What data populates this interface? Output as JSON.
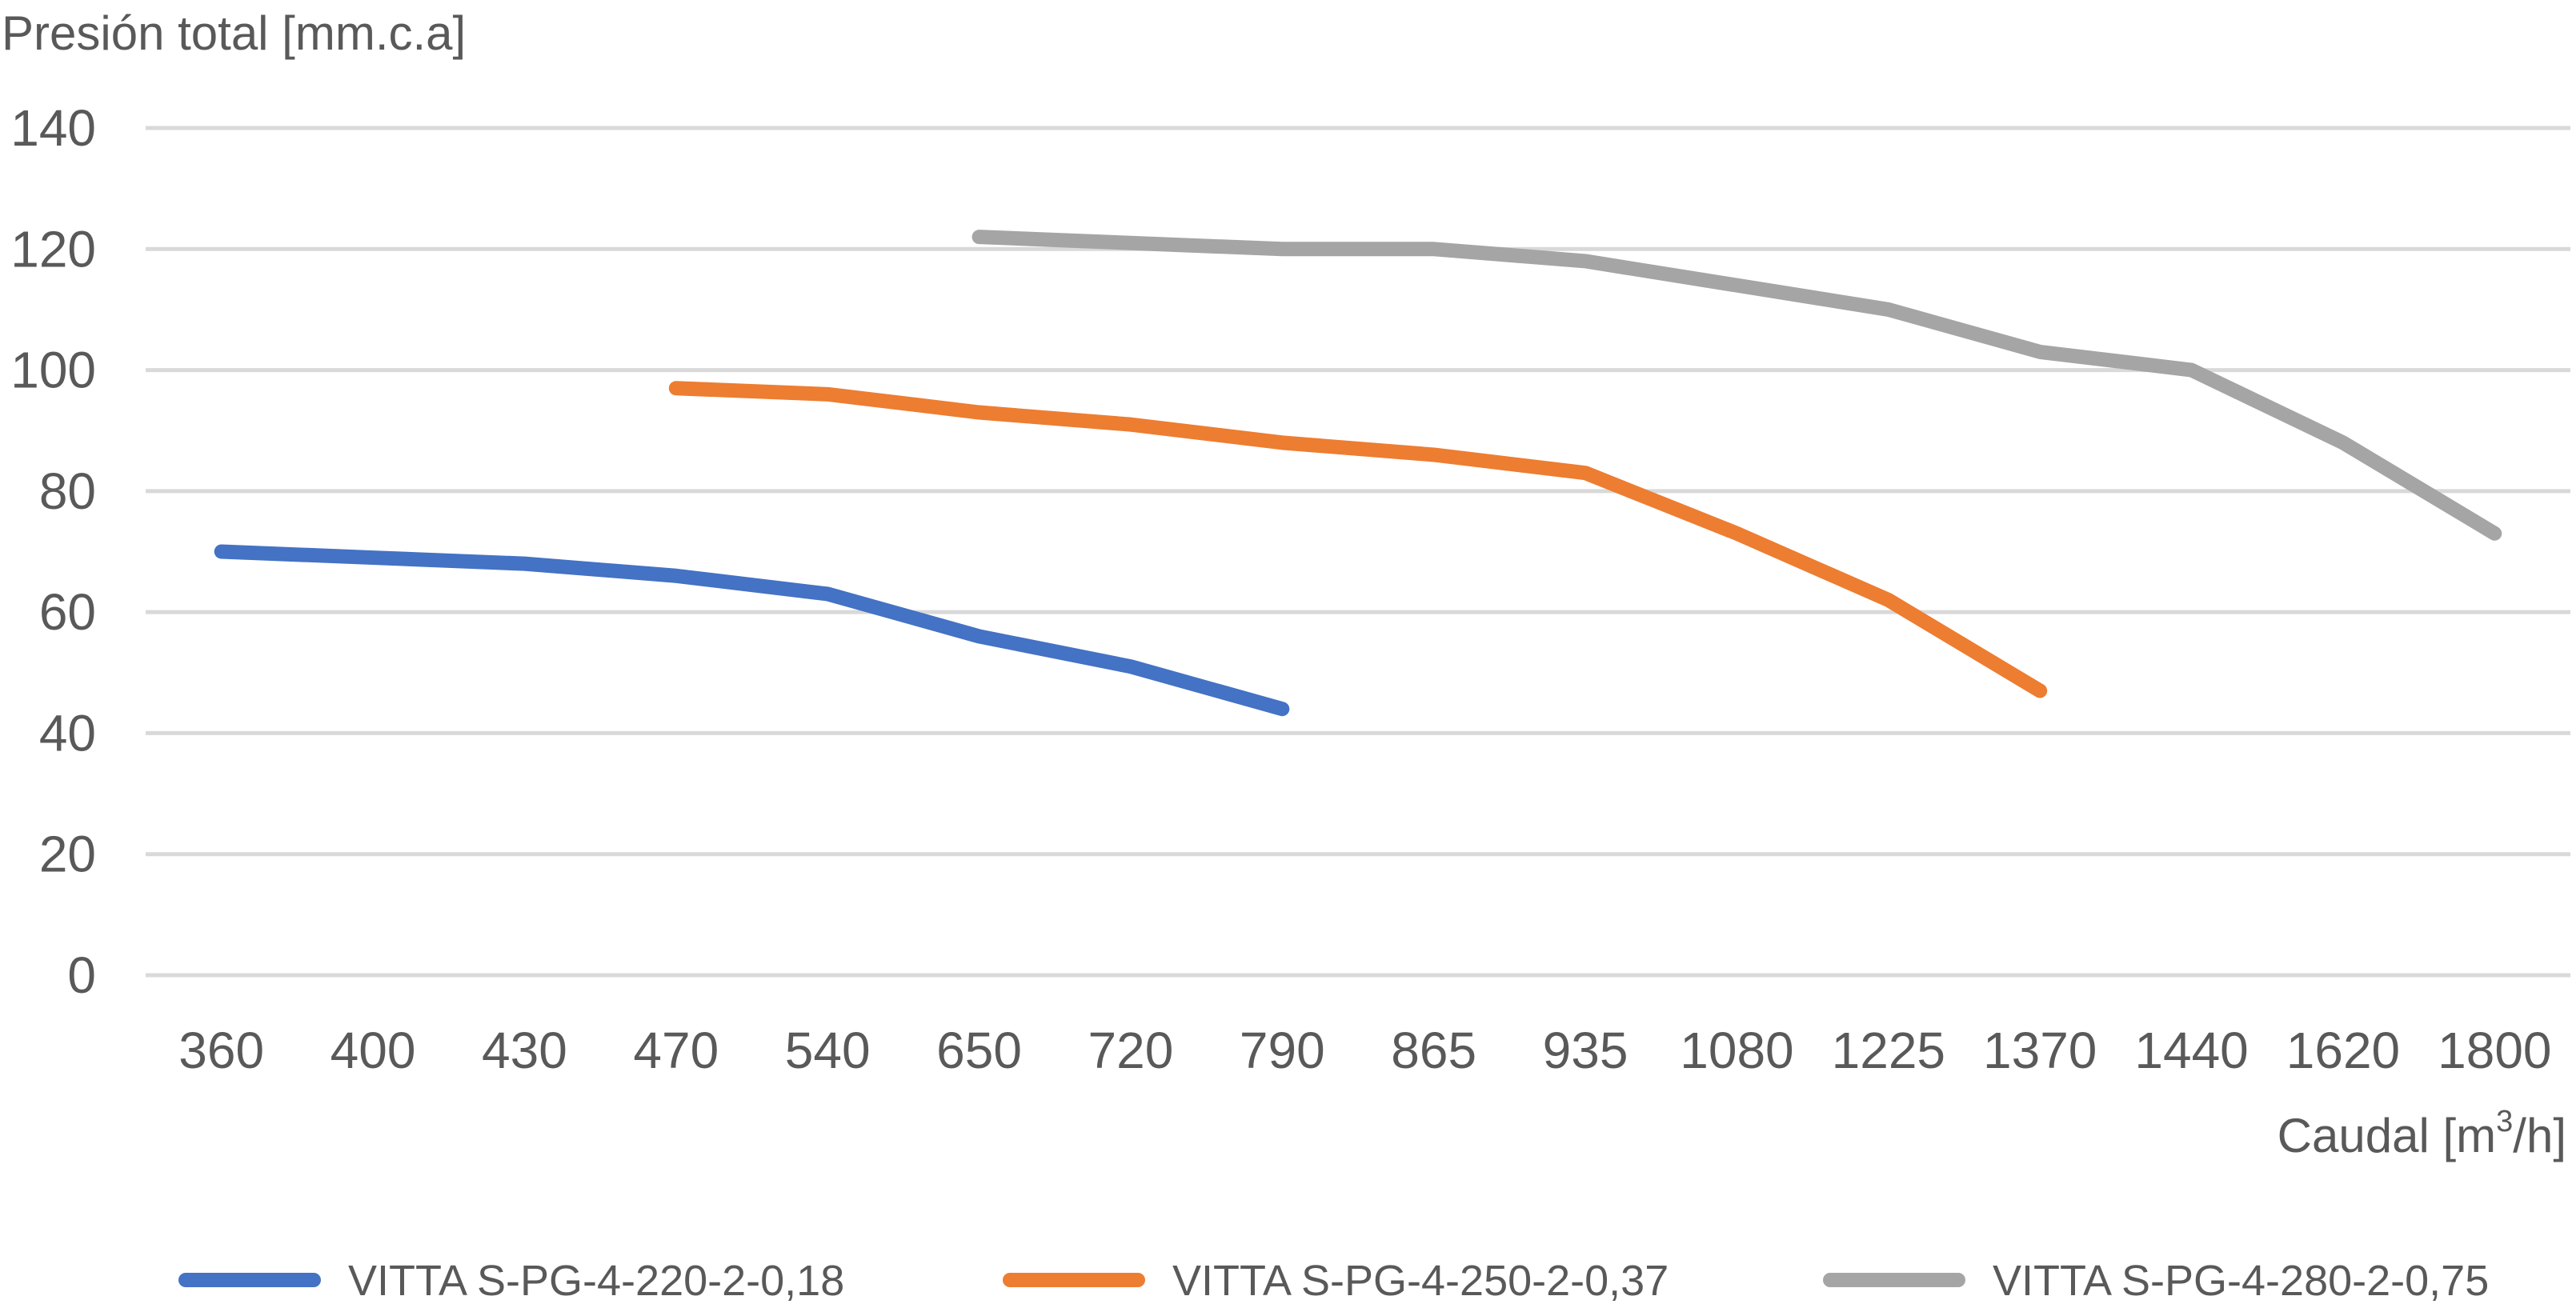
{
  "chart_data": {
    "type": "line",
    "title": "",
    "ylabel": "Presión total [mm.c.a]",
    "xlabel": "Caudal [m3/h]",
    "xlabel_parts": {
      "main": "Caudal [m",
      "sup": "3",
      "tail": "/h]"
    },
    "categories": [
      "360",
      "400",
      "430",
      "470",
      "540",
      "650",
      "720",
      "790",
      "865",
      "935",
      "1080",
      "1225",
      "1370",
      "1440",
      "1620",
      "1800"
    ],
    "ylim": [
      0,
      140
    ],
    "yticks": [
      0,
      20,
      40,
      60,
      80,
      100,
      120,
      140
    ],
    "grid": true,
    "legend_position": "bottom",
    "series": [
      {
        "name": "VITTA S-PG-4-220-2-0,18",
        "color": "#4472C4",
        "values": [
          70,
          69,
          68,
          66,
          63,
          56,
          51,
          44,
          null,
          null,
          null,
          null,
          null,
          null,
          null,
          null
        ]
      },
      {
        "name": "VITTA S-PG-4-250-2-0,37",
        "color": "#ED7D31",
        "values": [
          null,
          null,
          null,
          97,
          96,
          93,
          91,
          88,
          86,
          83,
          73,
          62,
          47,
          null,
          null,
          null
        ]
      },
      {
        "name": "VITTA S-PG-4-280-2-0,75",
        "color": "#A5A5A5",
        "values": [
          null,
          null,
          null,
          null,
          null,
          122,
          121,
          120,
          120,
          118,
          114,
          110,
          103,
          100,
          88,
          73
        ]
      }
    ]
  }
}
